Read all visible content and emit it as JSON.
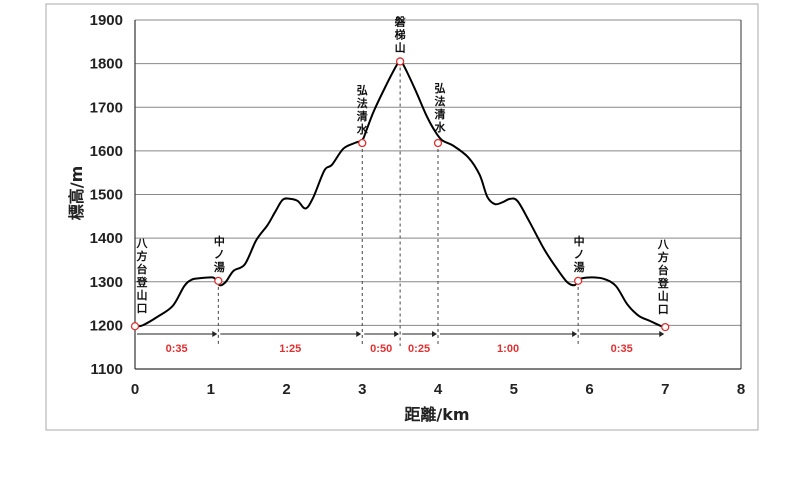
{
  "chart_data": {
    "type": "line",
    "xlabel": "距離/km",
    "ylabel": "標高/m",
    "xlim": [
      0,
      8
    ],
    "ylim": [
      1100,
      1900
    ],
    "xticks": [
      0,
      1,
      2,
      3,
      4,
      5,
      6,
      7,
      8
    ],
    "yticks": [
      1100,
      1200,
      1300,
      1400,
      1500,
      1600,
      1700,
      1800,
      1900
    ],
    "grid": "horizontal",
    "colors": {
      "profile": "#000000",
      "marker": "#e03030",
      "time": "#e03030",
      "grid": "#888888"
    },
    "profile": {
      "x": [
        0,
        0.1,
        0.3,
        0.5,
        0.65,
        0.75,
        0.85,
        1.0,
        1.05,
        1.12,
        1.2,
        1.3,
        1.45,
        1.6,
        1.75,
        1.85,
        1.95,
        2.05,
        2.15,
        2.25,
        2.35,
        2.5,
        2.6,
        2.75,
        2.9,
        3.0,
        3.05,
        3.15,
        3.3,
        3.45,
        3.5,
        3.55,
        3.7,
        3.85,
        3.95,
        4.05,
        4.2,
        4.4,
        4.55,
        4.65,
        4.75,
        4.85,
        4.95,
        5.05,
        5.2,
        5.4,
        5.55,
        5.7,
        5.8,
        5.85,
        5.9,
        6.05,
        6.2,
        6.35,
        6.5,
        6.65,
        6.8,
        6.95,
        7.0
      ],
      "y": [
        1198,
        1200,
        1220,
        1245,
        1290,
        1305,
        1308,
        1310,
        1308,
        1292,
        1300,
        1325,
        1340,
        1395,
        1430,
        1460,
        1488,
        1490,
        1485,
        1468,
        1492,
        1555,
        1568,
        1605,
        1618,
        1625,
        1645,
        1690,
        1745,
        1795,
        1805,
        1795,
        1740,
        1680,
        1648,
        1625,
        1612,
        1585,
        1545,
        1495,
        1478,
        1482,
        1490,
        1485,
        1440,
        1375,
        1335,
        1300,
        1292,
        1302,
        1308,
        1310,
        1306,
        1290,
        1248,
        1222,
        1210,
        1198,
        1196
      ]
    },
    "waypoints": [
      {
        "name": "八方台登山口",
        "chars": [
          "八",
          "方",
          "台",
          "登",
          "山",
          "口"
        ],
        "x": 0,
        "y": 1198
      },
      {
        "name": "中ノ湯",
        "chars": [
          "中",
          "ノ",
          "湯"
        ],
        "x": 1.1,
        "y": 1302
      },
      {
        "name": "弘法清水",
        "chars": [
          "弘",
          "法",
          "清",
          "水"
        ],
        "x": 3.0,
        "y": 1618
      },
      {
        "name": "磐梯山",
        "chars": [
          "磐",
          "梯",
          "山"
        ],
        "x": 3.5,
        "y": 1805
      },
      {
        "name": "弘法清水",
        "chars": [
          "弘",
          "法",
          "清",
          "水"
        ],
        "x": 4.0,
        "y": 1618
      },
      {
        "name": "中ノ湯",
        "chars": [
          "中",
          "ノ",
          "湯"
        ],
        "x": 5.85,
        "y": 1302
      },
      {
        "name": "八方台登山口",
        "chars": [
          "八",
          "方",
          "台",
          "登",
          "山",
          "口"
        ],
        "x": 7.0,
        "y": 1196
      }
    ],
    "segments": [
      {
        "from": 0,
        "to": 1.1,
        "time": "0:35"
      },
      {
        "from": 1.1,
        "to": 3.0,
        "time": "1:25"
      },
      {
        "from": 3.0,
        "to": 3.5,
        "time": "0:50"
      },
      {
        "from": 3.5,
        "to": 4.0,
        "time": "0:25"
      },
      {
        "from": 4.0,
        "to": 5.85,
        "time": "1:00"
      },
      {
        "from": 5.85,
        "to": 7.0,
        "time": "0:35"
      }
    ]
  }
}
